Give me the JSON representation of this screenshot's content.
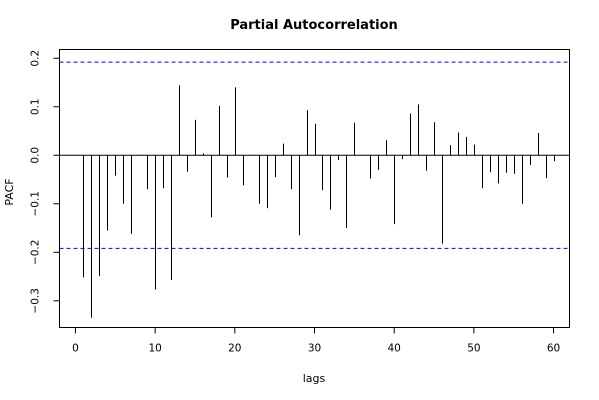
{
  "chart_data": {
    "type": "bar",
    "title": "Partial Autocorrelation",
    "xlabel": "lags",
    "ylabel": "PACF",
    "xlim": [
      -2,
      62
    ],
    "ylim": [
      -0.355,
      0.218
    ],
    "x_ticks": [
      0,
      10,
      20,
      30,
      40,
      50,
      60
    ],
    "y_ticks": [
      -0.3,
      -0.2,
      -0.1,
      0.0,
      0.1,
      0.2
    ],
    "y_tick_labels": [
      "−0.3",
      "−0.2",
      "−0.1",
      "0.0",
      "0.1",
      "0.2"
    ],
    "confidence_bound": 0.192,
    "confidence_color": "#0000ff",
    "grid": false,
    "lags": [
      1,
      2,
      3,
      4,
      5,
      6,
      7,
      8,
      9,
      10,
      11,
      12,
      13,
      14,
      15,
      16,
      17,
      18,
      19,
      20,
      21,
      22,
      23,
      24,
      25,
      26,
      27,
      28,
      29,
      30,
      31,
      32,
      33,
      34,
      35,
      36,
      37,
      38,
      39,
      40,
      41,
      42,
      43,
      44,
      45,
      46,
      47,
      48,
      49,
      50,
      51,
      52,
      53,
      54,
      55,
      56,
      57,
      58,
      59,
      60
    ],
    "values": [
      -0.252,
      -0.335,
      -0.249,
      -0.155,
      -0.042,
      -0.1,
      -0.162,
      0.0,
      -0.07,
      -0.277,
      -0.068,
      -0.257,
      0.144,
      -0.034,
      0.073,
      0.004,
      -0.128,
      0.102,
      -0.046,
      0.14,
      -0.062,
      0.0,
      -0.1,
      -0.109,
      -0.045,
      0.024,
      -0.07,
      -0.165,
      0.093,
      0.065,
      -0.072,
      -0.112,
      -0.01,
      -0.15,
      0.067,
      0.0,
      -0.048,
      -0.03,
      0.031,
      -0.142,
      -0.008,
      0.086,
      0.105,
      -0.032,
      0.068,
      -0.182,
      0.021,
      0.047,
      0.038,
      0.022,
      -0.068,
      -0.035,
      -0.058,
      -0.036,
      -0.038,
      -0.1,
      -0.02,
      0.046,
      -0.047,
      -0.012
    ]
  }
}
